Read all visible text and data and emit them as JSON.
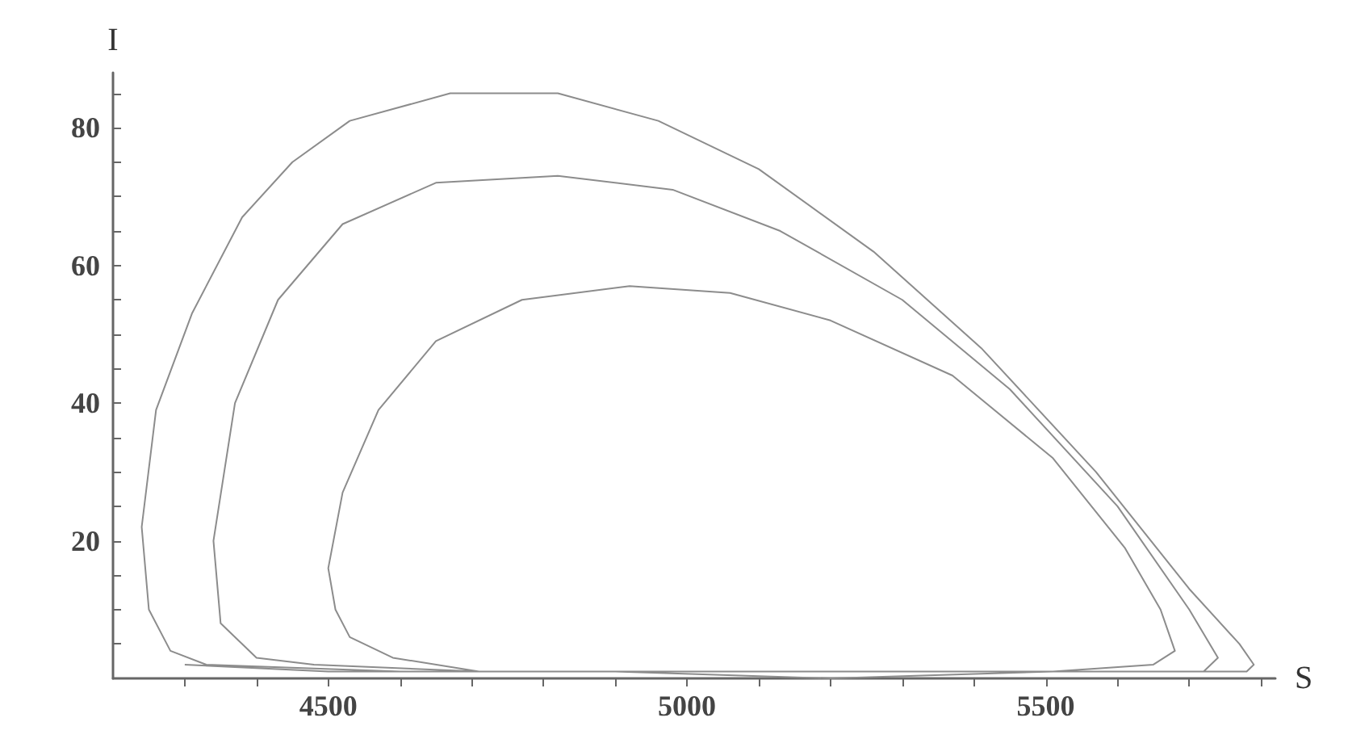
{
  "chart_data": {
    "type": "line",
    "xlabel": "S",
    "ylabel": "I",
    "xlim": [
      4200,
      5820
    ],
    "ylim": [
      0,
      88
    ],
    "xticks": [
      {
        "value": 4300,
        "label": null
      },
      {
        "value": 4400,
        "label": null
      },
      4500,
      {
        "value": 4600,
        "label": null
      },
      {
        "value": 4700,
        "label": null
      },
      {
        "value": 4800,
        "label": null
      },
      {
        "value": 4900,
        "label": null
      },
      5000,
      {
        "value": 5100,
        "label": null
      },
      {
        "value": 5200,
        "label": null
      },
      {
        "value": 5300,
        "label": null
      },
      {
        "value": 5400,
        "label": null
      },
      5500,
      {
        "value": 5600,
        "label": null
      },
      {
        "value": 5700,
        "label": null
      },
      {
        "value": 5800,
        "label": null
      }
    ],
    "yticks": [
      {
        "value": 5,
        "label": null
      },
      {
        "value": 10,
        "label": null
      },
      {
        "value": 15,
        "label": null
      },
      20,
      {
        "value": 25,
        "label": null
      },
      {
        "value": 30,
        "label": null
      },
      {
        "value": 35,
        "label": null
      },
      40,
      {
        "value": 45,
        "label": null
      },
      {
        "value": 50,
        "label": null
      },
      {
        "value": 55,
        "label": null
      },
      60,
      {
        "value": 65,
        "label": null
      },
      {
        "value": 70,
        "label": null
      },
      {
        "value": 75,
        "label": null
      },
      80,
      {
        "value": 85,
        "label": null
      }
    ],
    "series": [
      {
        "color": "#8c8c8c",
        "x": [
          4300,
          4500,
          5000,
          5500,
          5780,
          5790,
          5770,
          5700,
          5570,
          5410,
          5260,
          5100,
          4960,
          4820,
          4670,
          4530,
          4450,
          4380,
          4310,
          4260,
          4240,
          4250,
          4280,
          4330,
          4600,
          5000,
          5500,
          5720,
          5740,
          5700,
          5600,
          5450,
          5300,
          5130,
          4980,
          4820,
          4650,
          4520,
          4430,
          4370,
          4340,
          4350,
          4400,
          4480,
          4710,
          4900,
          5200,
          5510,
          5650,
          5680,
          5660,
          5610,
          5510,
          5370,
          5200,
          5060,
          4920,
          4770,
          4650,
          4570,
          4520,
          4500,
          4510,
          4530,
          4590,
          4710
        ],
        "values": [
          2,
          1,
          1,
          1,
          1,
          2,
          5,
          13,
          30,
          48,
          62,
          74,
          81,
          85,
          85,
          81,
          75,
          67,
          53,
          39,
          22,
          10,
          4,
          2,
          1,
          1,
          1,
          1,
          3,
          10,
          25,
          42,
          55,
          65,
          71,
          73,
          72,
          66,
          55,
          40,
          20,
          8,
          3,
          2,
          1,
          1,
          0,
          1,
          2,
          4,
          10,
          19,
          32,
          44,
          52,
          56,
          57,
          55,
          49,
          39,
          27,
          16,
          10,
          6,
          3,
          1
        ]
      }
    ]
  }
}
